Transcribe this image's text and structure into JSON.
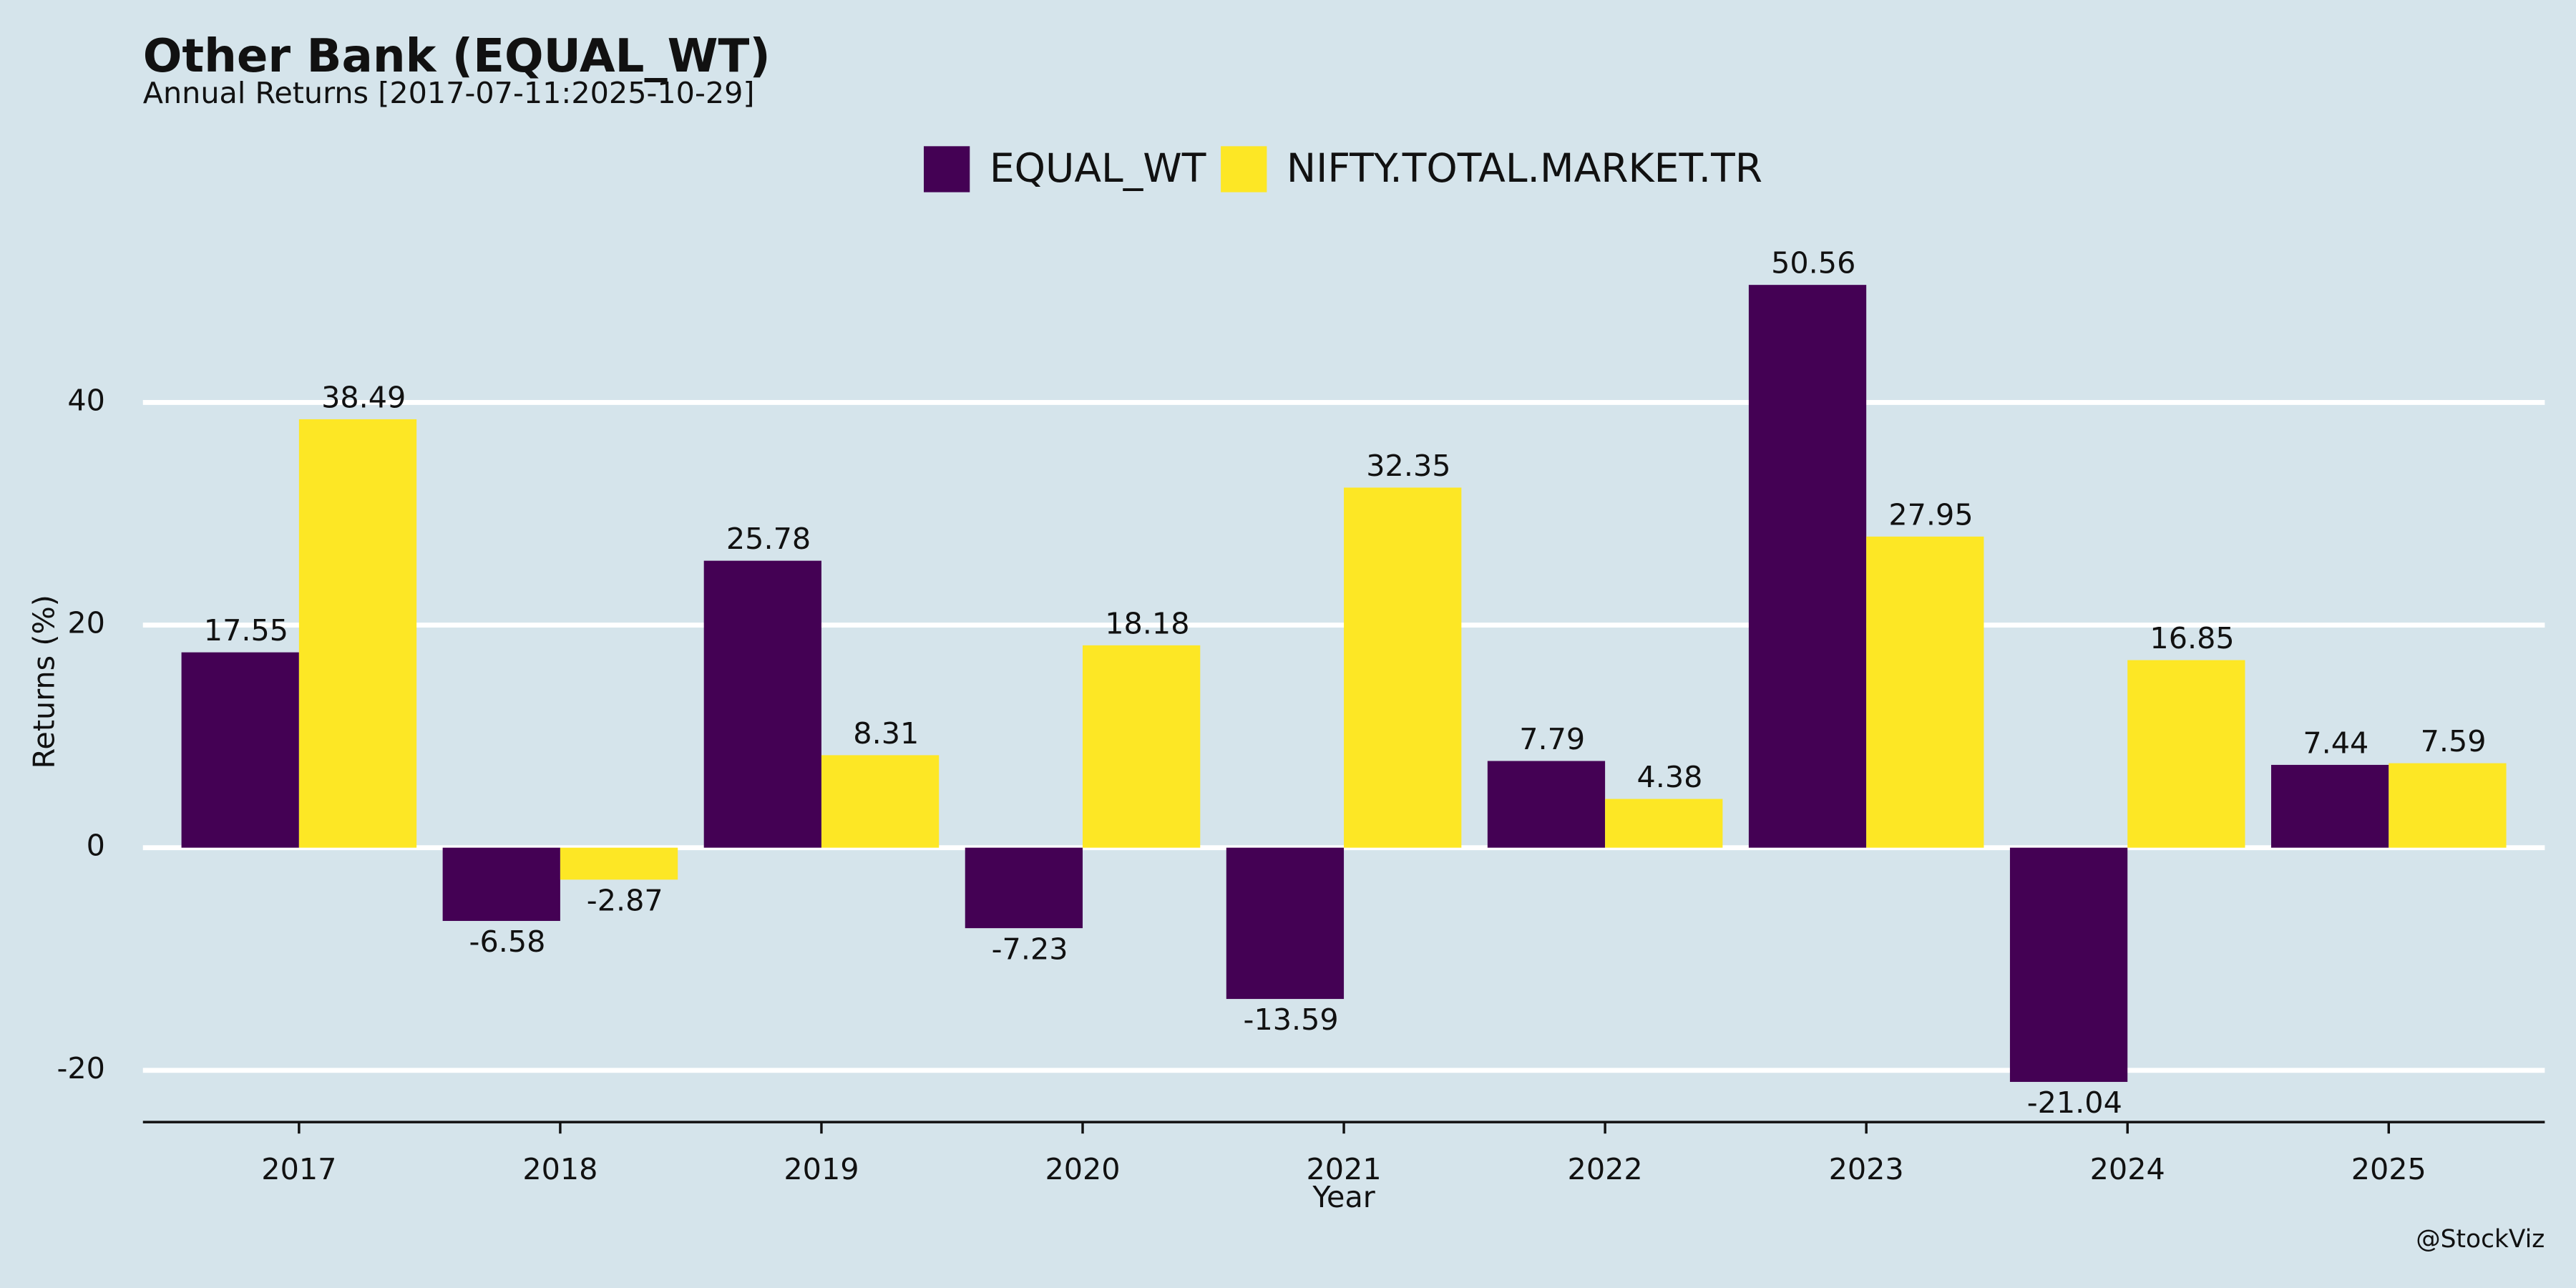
{
  "chart_data": {
    "type": "bar",
    "title": "Other Bank (EQUAL_WT)",
    "subtitle": "Annual Returns [2017-07-11:2025-10-29]",
    "x_label": "Year",
    "y_label": "Returns (%)",
    "caption": "@StockViz",
    "categories": [
      "2017",
      "2018",
      "2019",
      "2020",
      "2021",
      "2022",
      "2023",
      "2024",
      "2025"
    ],
    "series": [
      {
        "name": "EQUAL_WT",
        "color": "#440154",
        "values": [
          17.55,
          -6.58,
          25.78,
          -7.23,
          -13.59,
          7.79,
          50.56,
          -21.04,
          7.44
        ]
      },
      {
        "name": "NIFTY.TOTAL.MARKET.TR",
        "color": "#fde725",
        "values": [
          38.49,
          -2.87,
          8.31,
          18.18,
          32.35,
          4.38,
          27.95,
          16.85,
          7.59
        ]
      }
    ],
    "ylim": [
      -24.65,
      53.5
    ],
    "yticks": [
      -20,
      0,
      20,
      40
    ],
    "grid": true,
    "legend": "top"
  }
}
